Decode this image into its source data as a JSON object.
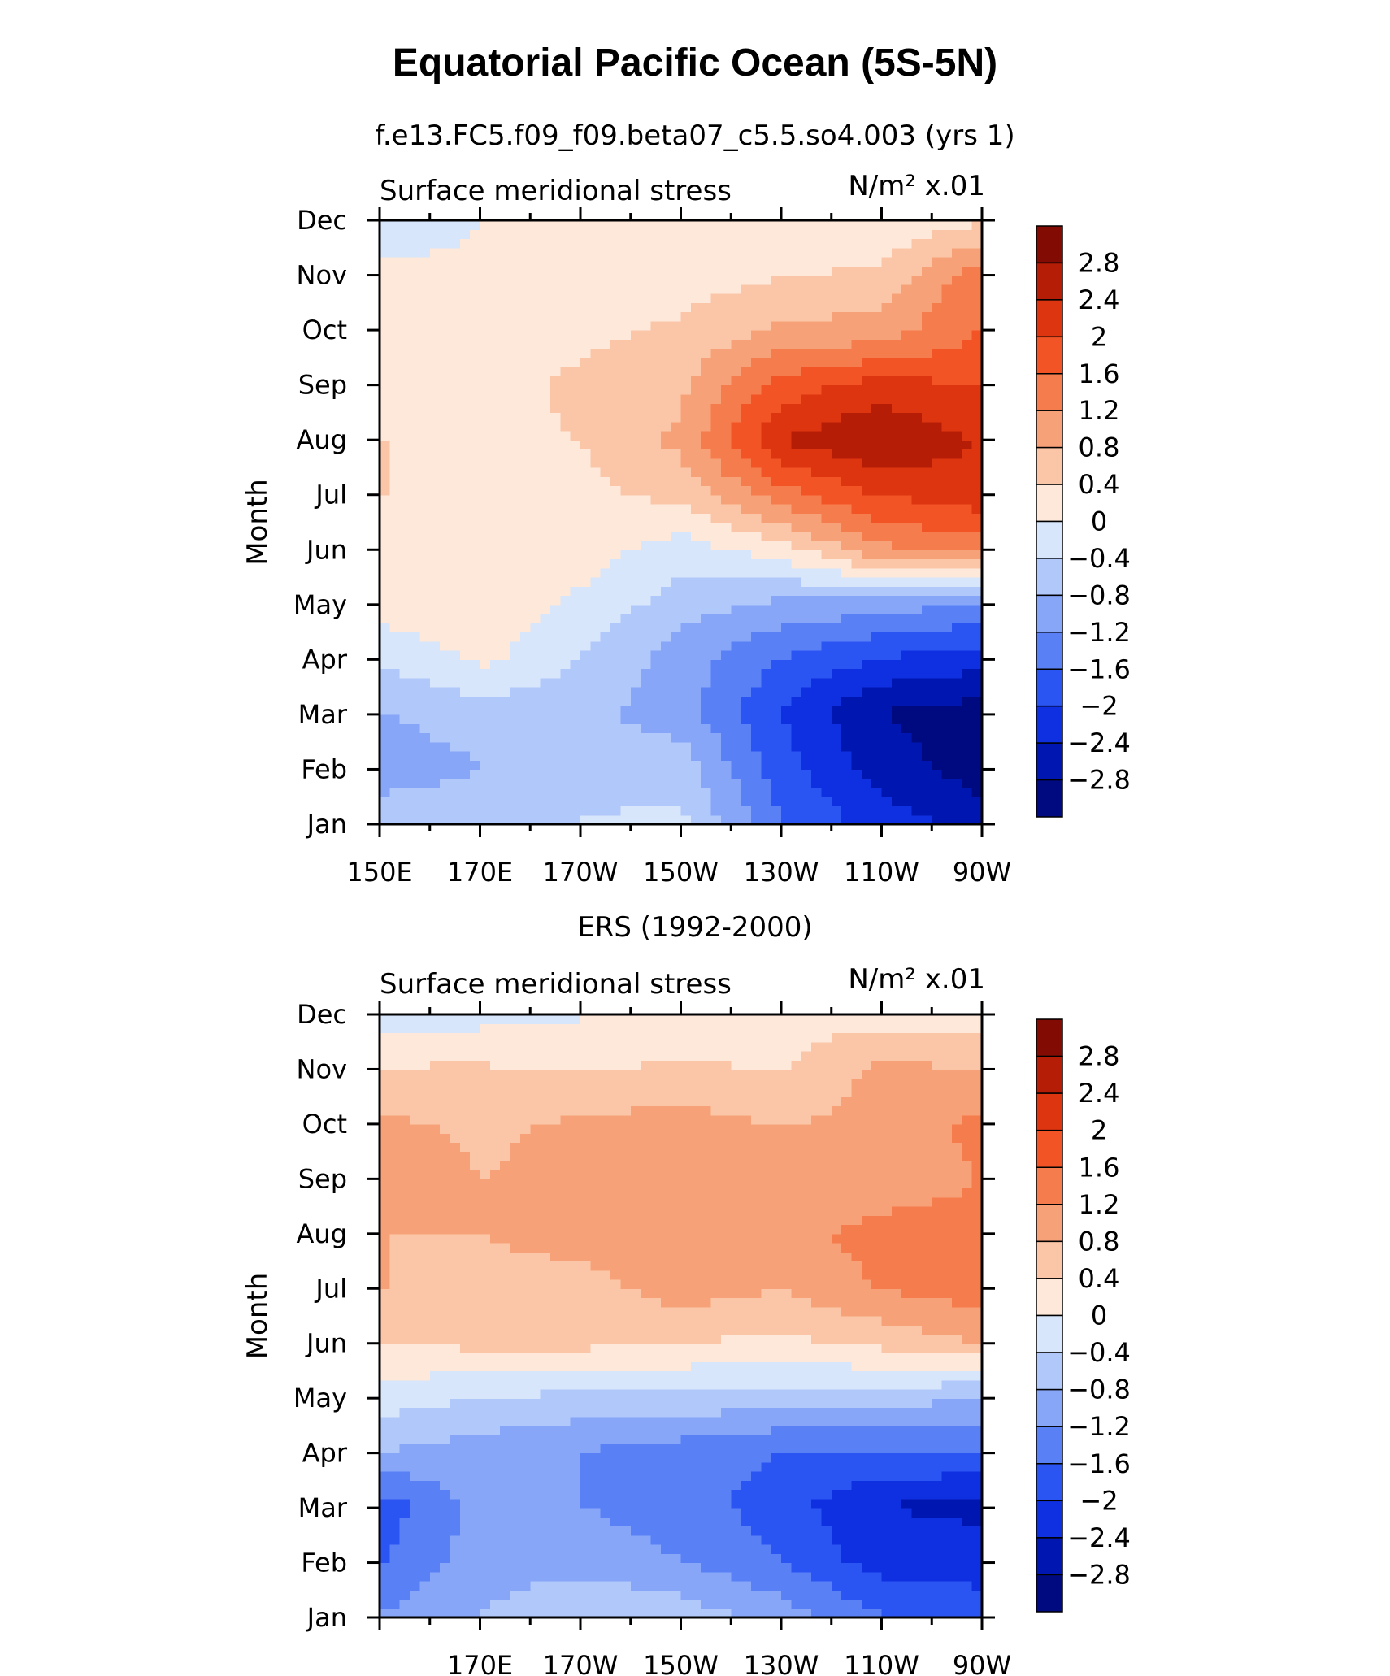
{
  "chart_data": {
    "type": "heatmap",
    "title": "Equatorial Pacific Ocean (5S-5N)",
    "panels": [
      {
        "subtitle": "f.e13.FC5.f09_f09.beta07_c5.5.so4.003 (yrs 1)",
        "left_label": "Surface meridional stress",
        "right_label": "N/m² x.01",
        "ylabel": "Month",
        "x_ticks": [
          "150E",
          "170E",
          "170W",
          "150W",
          "130W",
          "110W",
          "90W"
        ],
        "y_ticks": [
          "Jan",
          "Feb",
          "Mar",
          "Apr",
          "May",
          "Jun",
          "Jul",
          "Aug",
          "Sep",
          "Oct",
          "Nov",
          "Dec"
        ],
        "x_range_deg_east": [
          150,
          270
        ],
        "colorbar": {
          "levels": [
            "2.8",
            "2.4",
            "2",
            "1.6",
            "1.2",
            "0.8",
            "0.4",
            "0",
            "−0.4",
            "−0.8",
            "−1.2",
            "−1.6",
            "−2",
            "−2.4",
            "−2.8"
          ]
        },
        "grid": {
          "lon_deg_east": [
            150,
            170,
            190,
            210,
            230,
            250,
            270
          ],
          "months": [
            "Jan",
            "Feb",
            "Mar",
            "Apr",
            "May",
            "Jun",
            "Jul",
            "Aug",
            "Sep",
            "Oct",
            "Nov",
            "Dec"
          ],
          "values": [
            [
              -0.6,
              -0.6,
              -0.4,
              -0.3,
              -1.6,
              -2.2,
              -2.6
            ],
            [
              -1.0,
              -0.8,
              -0.6,
              -0.6,
              -1.8,
              -2.6,
              -3.0
            ],
            [
              -0.8,
              -0.6,
              -0.7,
              -1.0,
              -2.0,
              -2.8,
              -3.0
            ],
            [
              -0.3,
              0.1,
              -0.4,
              -1.0,
              -1.6,
              -2.0,
              -2.2
            ],
            [
              0.2,
              0.3,
              -0.1,
              -0.6,
              -0.9,
              -1.0,
              -1.2
            ],
            [
              0.2,
              0.3,
              0.2,
              -0.2,
              0.2,
              1.1,
              1.4
            ],
            [
              0.4,
              0.3,
              0.3,
              0.5,
              1.4,
              2.0,
              2.2
            ],
            [
              0.4,
              0.3,
              0.4,
              0.9,
              2.4,
              2.8,
              2.4
            ],
            [
              0.3,
              0.2,
              0.5,
              0.7,
              1.8,
              2.2,
              2.0
            ],
            [
              0.2,
              0.2,
              0.3,
              0.5,
              0.9,
              1.0,
              1.6
            ],
            [
              0.1,
              0.1,
              0.1,
              0.2,
              0.4,
              0.5,
              1.5
            ],
            [
              -0.2,
              0.0,
              0.1,
              0.1,
              0.1,
              0.1,
              0.4
            ]
          ]
        }
      },
      {
        "subtitle": "ERS (1992-2000)",
        "left_label": "Surface meridional stress",
        "right_label": "N/m² x.01",
        "ylabel": "Month",
        "x_ticks": [
          "170E",
          "170W",
          "150W",
          "130W",
          "110W",
          "90W"
        ],
        "y_ticks": [
          "Jan",
          "Feb",
          "Mar",
          "Apr",
          "May",
          "Jun",
          "Jul",
          "Aug",
          "Sep",
          "Oct",
          "Nov",
          "Dec"
        ],
        "x_range_deg_east": [
          150,
          270
        ],
        "colorbar": {
          "levels": [
            "2.8",
            "2.4",
            "2",
            "1.6",
            "1.2",
            "0.8",
            "0.4",
            "0",
            "−0.4",
            "−0.8",
            "−1.2",
            "−1.6",
            "−2",
            "−2.4",
            "−2.8"
          ]
        },
        "grid": {
          "lon_deg_east": [
            150,
            170,
            190,
            210,
            230,
            250,
            270
          ],
          "months": [
            "Jan",
            "Feb",
            "Mar",
            "Apr",
            "May",
            "Jun",
            "Jul",
            "Aug",
            "Sep",
            "Oct",
            "Nov",
            "Dec"
          ],
          "values": [
            [
              -1.2,
              -0.8,
              -0.4,
              -0.6,
              -1.0,
              -1.6,
              -1.8
            ],
            [
              -1.6,
              -1.0,
              -1.0,
              -1.2,
              -1.6,
              -2.2,
              -2.2
            ],
            [
              -1.8,
              -1.0,
              -1.2,
              -1.4,
              -1.8,
              -2.4,
              -2.5
            ],
            [
              -0.8,
              -1.0,
              -1.2,
              -1.4,
              -1.6,
              -1.6,
              -1.6
            ],
            [
              -0.2,
              -0.4,
              -0.5,
              -0.5,
              -0.6,
              -0.6,
              -0.8
            ],
            [
              0.4,
              0.5,
              0.5,
              0.4,
              0.3,
              0.5,
              0.8
            ],
            [
              0.8,
              0.6,
              0.6,
              1.0,
              0.8,
              1.2,
              1.4
            ],
            [
              0.8,
              0.8,
              1.0,
              1.1,
              1.0,
              1.4,
              1.4
            ],
            [
              1.2,
              0.8,
              1.0,
              1.0,
              0.9,
              0.9,
              1.2
            ],
            [
              0.9,
              0.7,
              0.9,
              1.0,
              0.8,
              0.9,
              1.3
            ],
            [
              0.5,
              0.5,
              0.4,
              0.5,
              0.4,
              0.9,
              0.9
            ],
            [
              -0.2,
              -0.1,
              0.0,
              0.1,
              0.2,
              0.3,
              0.2
            ]
          ]
        }
      }
    ]
  },
  "colors": {
    "palette": [
      "#000a80",
      "#0016b0",
      "#0f30e0",
      "#2b55f2",
      "#5a80f6",
      "#87a6f8",
      "#b1c8fa",
      "#d7e6fb",
      "#fde8da",
      "#fbc6a8",
      "#f7a178",
      "#f57c4c",
      "#f25426",
      "#dd3510",
      "#b61d06",
      "#820c03"
    ]
  }
}
